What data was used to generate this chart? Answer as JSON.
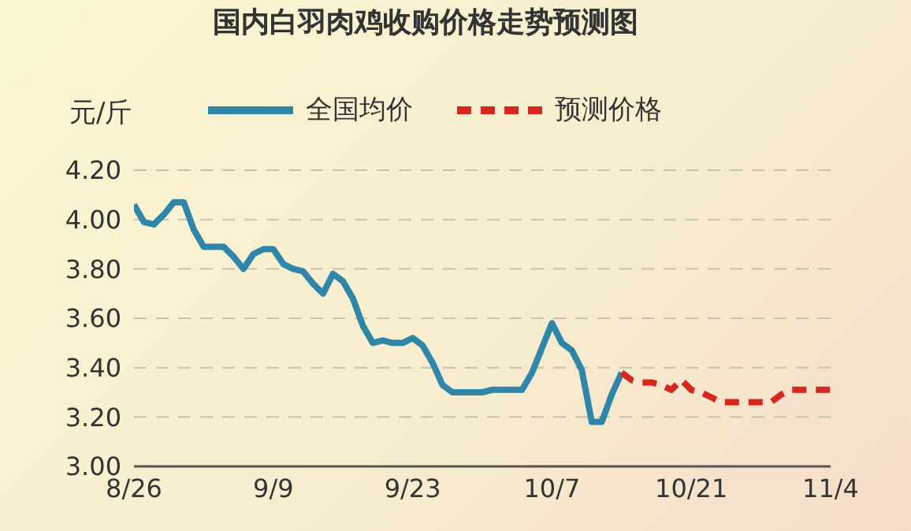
{
  "chart_data": {
    "type": "line",
    "title": "国内白羽肉鸡收购价格走势预测图",
    "ylabel": "元/斤",
    "categories": [
      "8/26",
      null,
      null,
      null,
      null,
      null,
      null,
      null,
      null,
      null,
      null,
      null,
      null,
      null,
      "9/9",
      null,
      null,
      null,
      null,
      null,
      null,
      null,
      null,
      null,
      null,
      null,
      null,
      null,
      "9/23",
      null,
      null,
      null,
      null,
      null,
      null,
      null,
      null,
      null,
      null,
      null,
      null,
      null,
      "10/7",
      null,
      null,
      null,
      null,
      null,
      null,
      null,
      null,
      null,
      null,
      null,
      null,
      null,
      "10/21",
      null,
      null,
      null,
      null,
      null,
      null,
      null,
      null,
      null,
      null,
      null,
      null,
      null,
      "11/4"
    ],
    "series": [
      {
        "name": "全国均价",
        "color": "#2e86a8",
        "line_style": "solid",
        "values": [
          4.06,
          3.99,
          3.98,
          4.02,
          4.07,
          4.07,
          3.96,
          3.89,
          3.89,
          3.89,
          3.85,
          3.8,
          3.86,
          3.88,
          3.88,
          3.82,
          3.8,
          3.79,
          3.74,
          3.7,
          3.78,
          3.75,
          3.68,
          3.57,
          3.5,
          3.51,
          3.5,
          3.5,
          3.52,
          3.49,
          3.42,
          3.33,
          3.3,
          3.3,
          3.3,
          3.3,
          3.31,
          3.31,
          3.31,
          3.31,
          3.38,
          3.48,
          3.58,
          3.5,
          3.47,
          3.39,
          3.18,
          3.18,
          3.29,
          3.38,
          null,
          null,
          null,
          null,
          null,
          null,
          null,
          null,
          null,
          null,
          null,
          null,
          null,
          null,
          null,
          null,
          null,
          null,
          null,
          null,
          null
        ]
      },
      {
        "name": "预测价格",
        "color": "#d7261e",
        "line_style": "dashed",
        "values": [
          null,
          null,
          null,
          null,
          null,
          null,
          null,
          null,
          null,
          null,
          null,
          null,
          null,
          null,
          null,
          null,
          null,
          null,
          null,
          null,
          null,
          null,
          null,
          null,
          null,
          null,
          null,
          null,
          null,
          null,
          null,
          null,
          null,
          null,
          null,
          null,
          null,
          null,
          null,
          null,
          null,
          null,
          null,
          null,
          null,
          null,
          null,
          null,
          null,
          3.38,
          3.35,
          3.34,
          3.34,
          3.33,
          3.31,
          3.35,
          3.31,
          3.3,
          3.28,
          3.26,
          3.26,
          3.26,
          3.26,
          3.26,
          3.26,
          3.29,
          3.31,
          3.31,
          3.31,
          3.31,
          3.31
        ]
      }
    ],
    "ylim": [
      3.0,
      4.2
    ],
    "yticks": [
      {
        "value": 3.0,
        "label": "3.00"
      },
      {
        "value": 3.2,
        "label": "3.20"
      },
      {
        "value": 3.4,
        "label": "3.40"
      },
      {
        "value": 3.6,
        "label": "3.60"
      },
      {
        "value": 3.8,
        "label": "3.80"
      },
      {
        "value": 4.0,
        "label": "4.00"
      },
      {
        "value": 4.2,
        "label": "4.20"
      }
    ],
    "grid": "y",
    "legend": "top",
    "marker": "none"
  }
}
